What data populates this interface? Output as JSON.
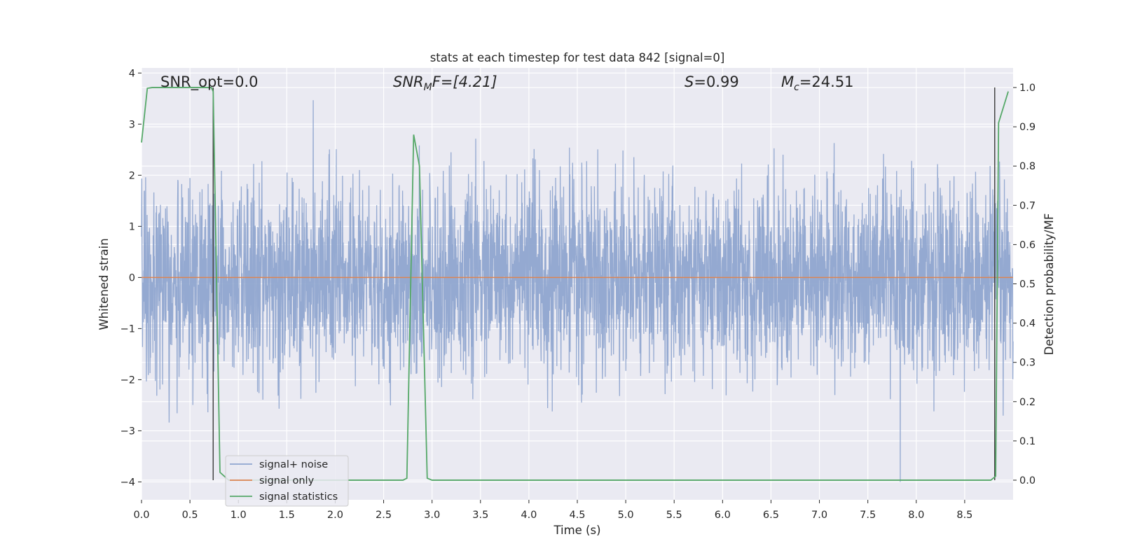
{
  "chart_data": {
    "type": "line",
    "title": "stats at each timestep for test data 842 [signal=0]",
    "xlabel": "Time (s)",
    "ylabel": "Whitened strain",
    "y2label": "Detection probability/MF",
    "xlim": [
      0,
      9.0
    ],
    "ylim": [
      -4.35,
      4.1
    ],
    "y2lim": [
      -0.05,
      1.05
    ],
    "x_ticks": [
      "0.0",
      "0.5",
      "1.0",
      "1.5",
      "2.0",
      "2.5",
      "3.0",
      "3.5",
      "4.0",
      "4.5",
      "5.0",
      "5.5",
      "6.0",
      "6.5",
      "7.0",
      "7.5",
      "8.0",
      "8.5"
    ],
    "y_ticks": [
      "4",
      "3",
      "2",
      "1",
      "0",
      "−1",
      "−2",
      "−3",
      "−4"
    ],
    "y2_ticks": [
      "1.0",
      "0.9",
      "0.8",
      "0.7",
      "0.6",
      "0.5",
      "0.4",
      "0.3",
      "0.2",
      "0.1",
      "0.0"
    ],
    "grid": true,
    "legend_position": "lower-left",
    "annotations": {
      "snr_opt": "SNR_opt=0.0",
      "snr_mf_sym": "SNR",
      "snr_mf_sub": "M",
      "snr_mf_val": "F=[4.21]",
      "s_sym": "S",
      "s_val": "=0.99",
      "mc_sym": "M",
      "mc_sub": "c",
      "mc_val": "=24.51"
    },
    "series": [
      {
        "name": "signal+ noise",
        "color": "#8fa5cf",
        "axis": "left",
        "description": "whitened noise, approx. std 0.9, range about -4.0 to 3.75",
        "std": 0.9
      },
      {
        "name": "signal only",
        "color": "#dd8452",
        "axis": "left",
        "x": [
          0,
          9.0
        ],
        "y": [
          0,
          0
        ]
      },
      {
        "name": "signal statistics",
        "color": "#55a868",
        "axis": "right",
        "x": [
          0.0,
          0.06,
          0.11,
          0.72,
          0.74,
          0.81,
          0.9,
          2.3,
          2.7,
          2.74,
          2.81,
          2.87,
          2.95,
          3.0,
          8.77,
          8.82,
          8.85,
          8.95
        ],
        "y": [
          0.86,
          0.998,
          1.0,
          1.0,
          0.99,
          0.02,
          0.0,
          0.0,
          0.0,
          0.005,
          0.88,
          0.8,
          0.005,
          0.0,
          0.0,
          0.01,
          0.91,
          0.99
        ]
      }
    ],
    "vlines": [
      0.74,
      8.81
    ],
    "vline_color": "#444444"
  }
}
